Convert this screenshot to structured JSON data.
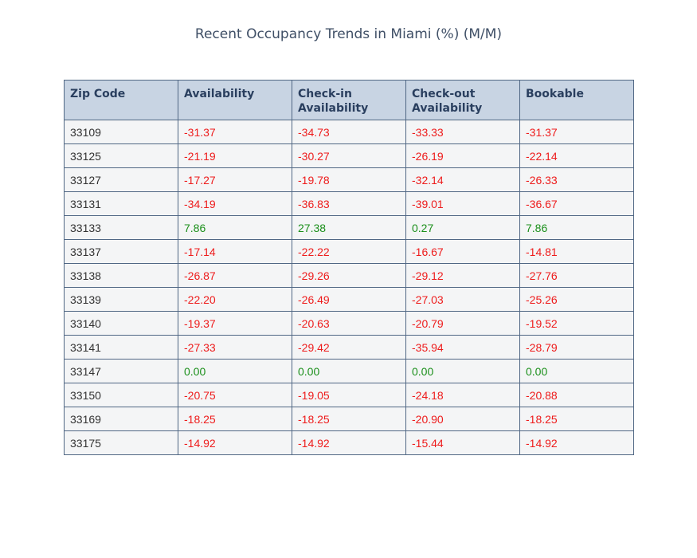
{
  "chart_data": {
    "type": "table",
    "title": "Recent Occupancy Trends in Miami (%) (M/M)",
    "columns": [
      "Zip Code",
      "Availability",
      "Check-in Availability",
      "Check-out Availability",
      "Bookable"
    ],
    "rows": [
      [
        "33109",
        "-31.37",
        "-34.73",
        "-33.33",
        "-31.37"
      ],
      [
        "33125",
        "-21.19",
        "-30.27",
        "-26.19",
        "-22.14"
      ],
      [
        "33127",
        "-17.27",
        "-19.78",
        "-32.14",
        "-26.33"
      ],
      [
        "33131",
        "-34.19",
        "-36.83",
        "-39.01",
        "-36.67"
      ],
      [
        "33133",
        "7.86",
        "27.38",
        "0.27",
        "7.86"
      ],
      [
        "33137",
        "-17.14",
        "-22.22",
        "-16.67",
        "-14.81"
      ],
      [
        "33138",
        "-26.87",
        "-29.26",
        "-29.12",
        "-27.76"
      ],
      [
        "33139",
        "-22.20",
        "-26.49",
        "-27.03",
        "-25.26"
      ],
      [
        "33140",
        "-19.37",
        "-20.63",
        "-20.79",
        "-19.52"
      ],
      [
        "33141",
        "-27.33",
        "-29.42",
        "-35.94",
        "-28.79"
      ],
      [
        "33147",
        "0.00",
        "0.00",
        "0.00",
        "0.00"
      ],
      [
        "33150",
        "-20.75",
        "-19.05",
        "-24.18",
        "-20.88"
      ],
      [
        "33169",
        "-18.25",
        "-18.25",
        "-20.90",
        "-18.25"
      ],
      [
        "33175",
        "-14.92",
        "-14.92",
        "-15.44",
        "-14.92"
      ]
    ],
    "colors": {
      "negative": "#ee1c1c",
      "non_negative": "#1a8f1a",
      "header_fill": "#c8d4e3",
      "cell_fill": "#f4f5f6",
      "border": "#506784"
    }
  }
}
